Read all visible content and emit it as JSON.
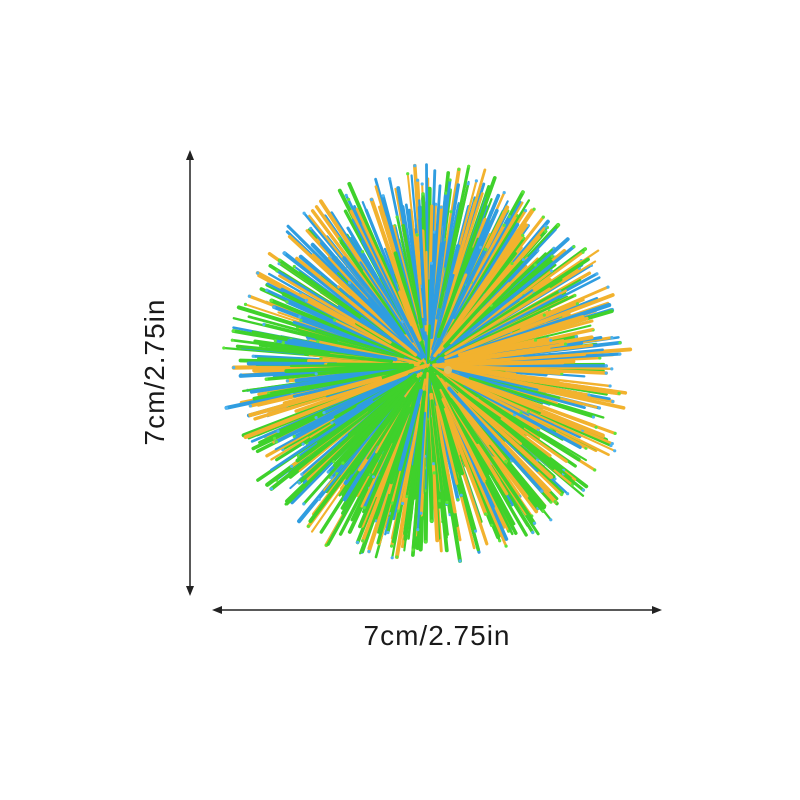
{
  "product": {
    "name_icon": "rainbow-stress-ball",
    "colors": [
      "#3fd12b",
      "#f2b22e",
      "#2f9de0",
      "#5ce63a",
      "#ffc83d",
      "#4db3f0"
    ]
  },
  "dimensions": {
    "width_label": "7cm/2.75in",
    "height_label": "7cm/2.75in"
  },
  "styles": {
    "text_color": "#1a1a1a",
    "line_color": "#222222",
    "background": "#ffffff"
  }
}
